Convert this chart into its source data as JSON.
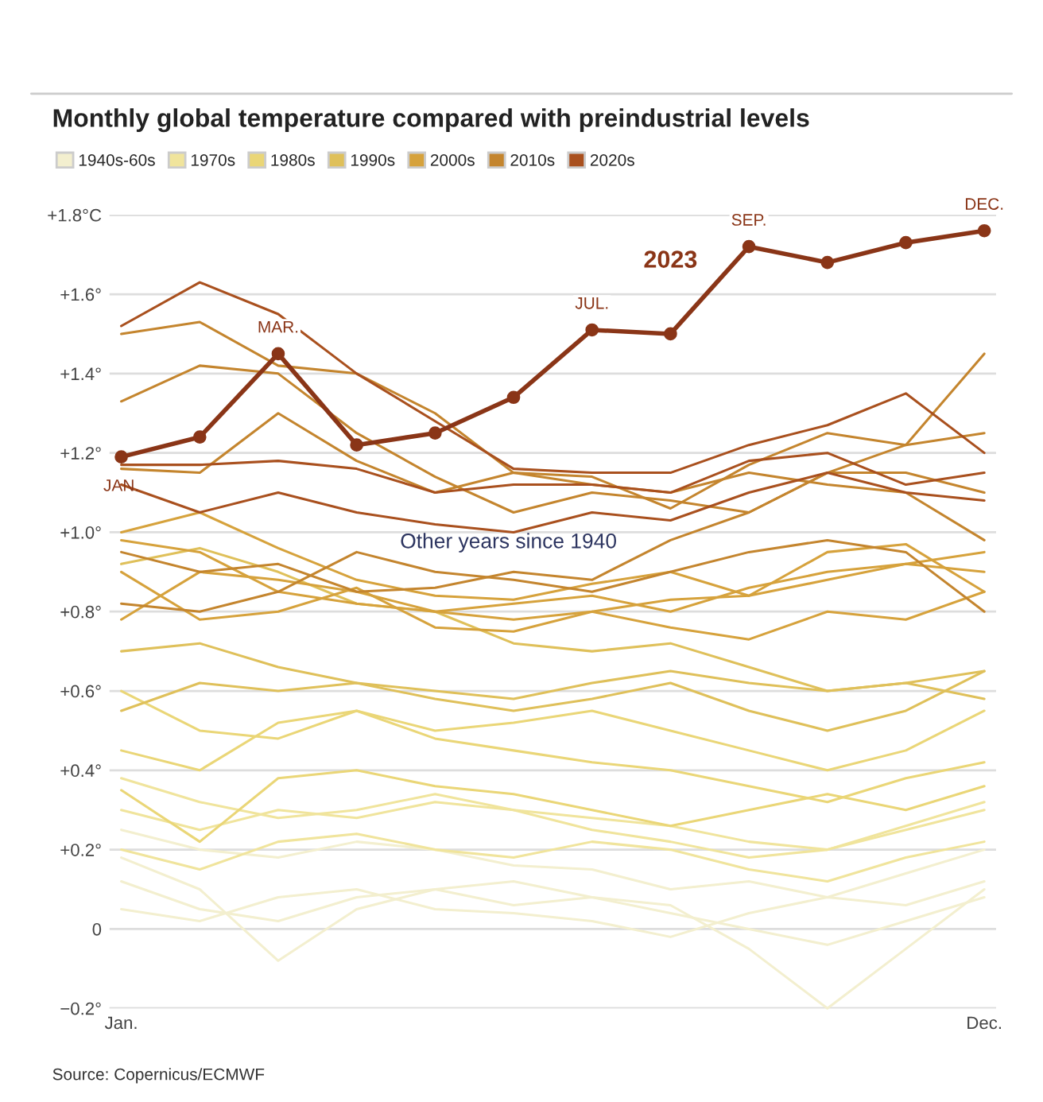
{
  "chart_data": {
    "type": "line",
    "title": "Monthly global temperature compared with preindustrial levels",
    "categories": [
      "Jan.",
      null,
      null,
      null,
      null,
      null,
      null,
      null,
      null,
      null,
      null,
      "Dec."
    ],
    "ylim": [
      -0.2,
      1.8
    ],
    "yticks": [
      {
        "value": 1.8,
        "label": "+1.8°C"
      },
      {
        "value": 1.6,
        "label": "+1.6°"
      },
      {
        "value": 1.4,
        "label": "+1.4°"
      },
      {
        "value": 1.2,
        "label": "+1.2°"
      },
      {
        "value": 1.0,
        "label": "+1.0°"
      },
      {
        "value": 0.8,
        "label": "+0.8°"
      },
      {
        "value": 0.6,
        "label": "+0.6°"
      },
      {
        "value": 0.4,
        "label": "+0.4°"
      },
      {
        "value": 0.2,
        "label": "+0.2°"
      },
      0,
      {
        "value": -0.2,
        "label": "−0.2°"
      }
    ],
    "grid": "y",
    "legend": "top left",
    "line_style": "solid",
    "annotations": [
      "Other years since 1940",
      "Source: Copernicus/ECMWF",
      {
        "text": "JAN.",
        "y": 1.19
      },
      {
        "text": "MAR.",
        "y": 1.45
      },
      {
        "text": "JUL.",
        "y": 1.51
      },
      {
        "text": "SEP.",
        "y": 1.72
      },
      {
        "text": "DEC.",
        "y": 1.76
      }
    ],
    "series": [
      {
        "name": "1940s-60s",
        "color": "#f3efcf",
        "values": [
          0.12,
          0.05,
          0.02,
          0.08,
          0.1,
          0.06,
          0.08,
          0.04,
          0.0,
          -0.04,
          0.02,
          0.08
        ]
      },
      {
        "color": "#f3efcf",
        "values": [
          0.18,
          0.1,
          -0.08,
          0.05,
          0.1,
          0.12,
          0.08,
          0.06,
          -0.05,
          -0.2,
          -0.05,
          0.1
        ]
      },
      {
        "color": "#f3efcf",
        "values": [
          0.05,
          0.02,
          0.08,
          0.1,
          0.05,
          0.04,
          0.02,
          -0.02,
          0.04,
          0.08,
          0.06,
          0.12
        ]
      },
      {
        "color": "#f3efcf",
        "values": [
          0.25,
          0.2,
          0.18,
          0.22,
          0.2,
          0.16,
          0.15,
          0.1,
          0.12,
          0.08,
          0.14,
          0.2
        ]
      },
      {
        "name": "1970s",
        "color": "#f0e49c",
        "values": [
          0.3,
          0.25,
          0.3,
          0.28,
          0.32,
          0.3,
          0.25,
          0.22,
          0.18,
          0.2,
          0.25,
          0.3
        ]
      },
      {
        "color": "#f0e49c",
        "values": [
          0.2,
          0.15,
          0.22,
          0.24,
          0.2,
          0.18,
          0.22,
          0.2,
          0.15,
          0.12,
          0.18,
          0.22
        ]
      },
      {
        "color": "#f0e49c",
        "values": [
          0.38,
          0.32,
          0.28,
          0.3,
          0.34,
          0.3,
          0.28,
          0.26,
          0.22,
          0.2,
          0.26,
          0.32
        ]
      },
      {
        "name": "1980s",
        "color": "#ead677",
        "values": [
          0.45,
          0.4,
          0.52,
          0.55,
          0.48,
          0.45,
          0.42,
          0.4,
          0.36,
          0.32,
          0.38,
          0.42
        ]
      },
      {
        "color": "#ead677",
        "values": [
          0.6,
          0.5,
          0.48,
          0.55,
          0.5,
          0.52,
          0.55,
          0.5,
          0.45,
          0.4,
          0.45,
          0.55
        ]
      },
      {
        "color": "#ead677",
        "values": [
          0.35,
          0.22,
          0.38,
          0.4,
          0.36,
          0.34,
          0.3,
          0.26,
          0.3,
          0.34,
          0.3,
          0.36
        ]
      },
      {
        "name": "1990s",
        "color": "#dfc05a",
        "values": [
          0.55,
          0.62,
          0.6,
          0.62,
          0.58,
          0.55,
          0.58,
          0.62,
          0.55,
          0.5,
          0.55,
          0.65
        ]
      },
      {
        "color": "#dfc05a",
        "values": [
          0.7,
          0.72,
          0.66,
          0.62,
          0.6,
          0.58,
          0.62,
          0.65,
          0.62,
          0.6,
          0.62,
          0.58
        ]
      },
      {
        "color": "#dfc05a",
        "values": [
          0.92,
          0.96,
          0.9,
          0.82,
          0.8,
          0.72,
          0.7,
          0.72,
          0.66,
          0.6,
          0.62,
          0.65
        ]
      },
      {
        "name": "2000s",
        "color": "#d6a23c",
        "values": [
          0.78,
          0.9,
          0.88,
          0.85,
          0.8,
          0.82,
          0.84,
          0.8,
          0.86,
          0.9,
          0.92,
          0.9
        ]
      },
      {
        "color": "#d6a23c",
        "values": [
          0.98,
          0.95,
          0.85,
          0.82,
          0.8,
          0.78,
          0.8,
          0.83,
          0.84,
          0.95,
          0.97,
          0.85
        ]
      },
      {
        "color": "#d6a23c",
        "values": [
          0.9,
          0.78,
          0.8,
          0.86,
          0.76,
          0.75,
          0.8,
          0.76,
          0.73,
          0.8,
          0.78,
          0.85
        ]
      },
      {
        "color": "#d6a23c",
        "values": [
          1.0,
          1.05,
          0.96,
          0.88,
          0.84,
          0.83,
          0.87,
          0.9,
          0.84,
          0.88,
          0.92,
          0.95
        ]
      },
      {
        "name": "2010s",
        "color": "#c4852e",
        "values": [
          1.5,
          1.53,
          1.42,
          1.4,
          1.3,
          1.15,
          1.12,
          1.1,
          1.15,
          1.12,
          1.1,
          0.98
        ]
      },
      {
        "color": "#c4852e",
        "values": [
          1.16,
          1.15,
          1.3,
          1.18,
          1.1,
          1.15,
          1.14,
          1.06,
          1.17,
          1.25,
          1.22,
          1.25
        ]
      },
      {
        "color": "#c4852e",
        "values": [
          1.33,
          1.42,
          1.4,
          1.25,
          1.14,
          1.05,
          1.1,
          1.08,
          1.05,
          1.15,
          1.15,
          1.1
        ]
      },
      {
        "color": "#c4852e",
        "values": [
          0.95,
          0.9,
          0.92,
          0.85,
          0.86,
          0.9,
          0.88,
          0.98,
          1.05,
          1.15,
          1.22,
          1.45
        ]
      },
      {
        "color": "#c4852e",
        "values": [
          0.82,
          0.8,
          0.85,
          0.95,
          0.9,
          0.88,
          0.85,
          0.9,
          0.95,
          0.98,
          0.95,
          0.8
        ]
      },
      {
        "name": "2020s",
        "color": "#a9501e",
        "values": [
          1.52,
          1.63,
          1.55,
          1.4,
          1.28,
          1.16,
          1.15,
          1.15,
          1.22,
          1.27,
          1.35,
          1.2
        ]
      },
      {
        "color": "#a9501e",
        "values": [
          1.12,
          1.05,
          1.1,
          1.05,
          1.02,
          1.0,
          1.05,
          1.03,
          1.1,
          1.15,
          1.1,
          1.08
        ]
      },
      {
        "color": "#a9501e",
        "values": [
          1.17,
          1.17,
          1.18,
          1.16,
          1.1,
          1.12,
          1.12,
          1.1,
          1.18,
          1.2,
          1.12,
          1.15
        ]
      },
      {
        "name": "2023",
        "marker": "circle",
        "color": "#8a3517",
        "values": [
          1.19,
          1.24,
          1.45,
          1.22,
          1.25,
          1.34,
          1.51,
          1.5,
          1.72,
          1.68,
          1.73,
          1.76
        ]
      }
    ]
  }
}
